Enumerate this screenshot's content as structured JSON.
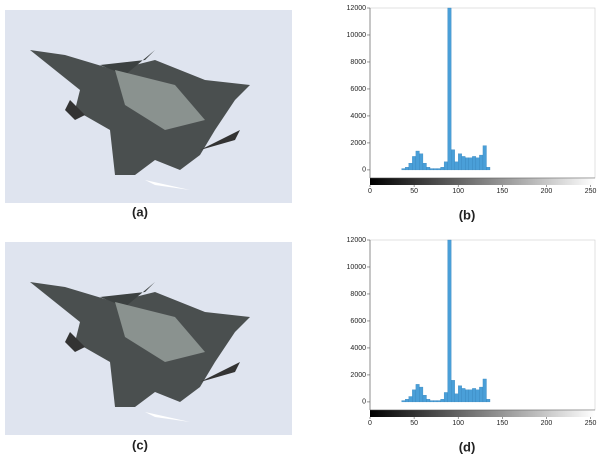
{
  "panels": [
    "(a)",
    "(b)",
    "(c)",
    "(d)"
  ],
  "chart_data": [
    {
      "type": "histogram",
      "color": "#4a9fd8",
      "bins": [
        36,
        40,
        44,
        48,
        52,
        56,
        60,
        64,
        68,
        72,
        76,
        80,
        84,
        88,
        92,
        96,
        100,
        104,
        108,
        112,
        116,
        120,
        124,
        128,
        132,
        136
      ],
      "values": [
        100,
        200,
        500,
        1000,
        1400,
        1200,
        500,
        200,
        100,
        100,
        100,
        200,
        600,
        12000,
        1500,
        600,
        1200,
        1000,
        900,
        900,
        1000,
        900,
        1100,
        1800,
        200
      ],
      "xlim": [
        0,
        255
      ],
      "xticks": [
        0,
        50,
        100,
        150,
        200,
        250
      ],
      "ylim": [
        -600,
        12000
      ],
      "yticks": [
        0,
        2000,
        4000,
        6000,
        8000,
        10000,
        12000
      ]
    },
    {
      "type": "histogram",
      "color": "#4a9fd8",
      "bins": [
        36,
        40,
        44,
        48,
        52,
        56,
        60,
        64,
        68,
        72,
        76,
        80,
        84,
        88,
        92,
        96,
        100,
        104,
        108,
        112,
        116,
        120,
        124,
        128,
        132,
        136
      ],
      "values": [
        100,
        200,
        400,
        900,
        1300,
        1100,
        500,
        200,
        100,
        100,
        100,
        200,
        700,
        12000,
        1600,
        600,
        1200,
        1000,
        900,
        900,
        1000,
        900,
        1100,
        1700,
        200
      ],
      "xlim": [
        0,
        255
      ],
      "xticks": [
        0,
        50,
        100,
        150,
        200,
        250
      ],
      "ylim": [
        -600,
        12000
      ],
      "yticks": [
        0,
        2000,
        4000,
        6000,
        8000,
        10000,
        12000
      ]
    }
  ]
}
